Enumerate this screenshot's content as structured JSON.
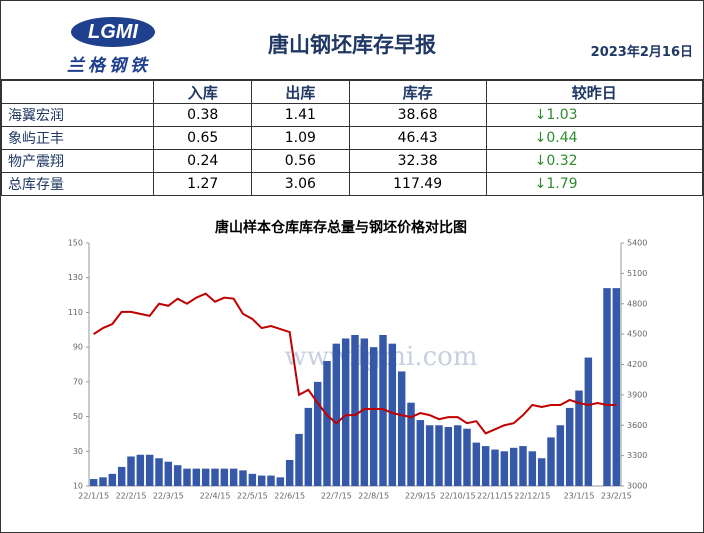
{
  "header": {
    "logo": "LGMI",
    "logo_cn": "兰格钢铁",
    "title": "唐山钢坯库存早报",
    "date": "2023年2月16日"
  },
  "table": {
    "columns": [
      "",
      "入库",
      "出库",
      "库存",
      "较昨日"
    ],
    "rows": [
      [
        "海翼宏润",
        "0.38",
        "1.41",
        "38.68",
        "↓1.03"
      ],
      [
        "象屿正丰",
        "0.65",
        "1.09",
        "46.43",
        "↓0.44"
      ],
      [
        "物产震翔",
        "0.24",
        "0.56",
        "32.38",
        "↓0.32"
      ],
      [
        "总库存量",
        "1.27",
        "3.06",
        "117.49",
        "↓1.79"
      ]
    ]
  },
  "watermark": "www.lgmi.com",
  "chart_data": {
    "type": "bar",
    "title": "唐山样本仓库库存总量与钢坯价格对比图",
    "categories": [
      "22/1/15",
      null,
      null,
      null,
      "22/2/15",
      null,
      null,
      null,
      "22/3/15",
      null,
      null,
      null,
      null,
      "22/4/15",
      null,
      null,
      null,
      "22/5/15",
      null,
      null,
      null,
      "22/6/15",
      null,
      null,
      null,
      null,
      "22/7/15",
      null,
      null,
      null,
      "22/8/15",
      null,
      null,
      null,
      null,
      "22/9/15",
      null,
      null,
      null,
      "22/10/15",
      null,
      null,
      null,
      "22/11/15",
      null,
      null,
      null,
      "22/12/15",
      null,
      null,
      null,
      null,
      "23/1/15",
      null,
      null,
      null,
      "23/2/15"
    ],
    "series": [
      {
        "type": "bar",
        "color": "#3558a8",
        "values": [
          14,
          15,
          17,
          21,
          27,
          28,
          28,
          26,
          24,
          22,
          20,
          20,
          20,
          20,
          20,
          20,
          19,
          17,
          16,
          16,
          15,
          25,
          40,
          55,
          70,
          82,
          92,
          95,
          97,
          95,
          90,
          97,
          92,
          76,
          58,
          48,
          45,
          45,
          44,
          45,
          43,
          35,
          33,
          31,
          30,
          32,
          33,
          30,
          26,
          38,
          45,
          55,
          65,
          84,
          null,
          124,
          124
        ]
      },
      {
        "type": "line",
        "axis": "y2",
        "color": "#c00000",
        "values": [
          4500,
          4560,
          4600,
          4720,
          4720,
          4700,
          4680,
          4800,
          4780,
          4850,
          4800,
          4860,
          4900,
          4820,
          4860,
          4850,
          4700,
          4650,
          4560,
          4580,
          4550,
          4520,
          3900,
          3950,
          3820,
          3700,
          3620,
          3700,
          3700,
          3760,
          3760,
          3760,
          3720,
          3700,
          3680,
          3720,
          3700,
          3660,
          3680,
          3680,
          3620,
          3640,
          3520,
          3560,
          3600,
          3620,
          3700,
          3800,
          3780,
          3800,
          3800,
          3850,
          3820,
          3800,
          3820,
          3800,
          3800
        ]
      }
    ],
    "ylim": [
      10,
      150
    ],
    "yticks": [
      10,
      30,
      50,
      70,
      90,
      110,
      130,
      150
    ],
    "y2lim": [
      3000,
      5400
    ],
    "y2ticks": [
      3000,
      3300,
      3600,
      3900,
      4200,
      4500,
      4800,
      5100,
      5400
    ]
  }
}
